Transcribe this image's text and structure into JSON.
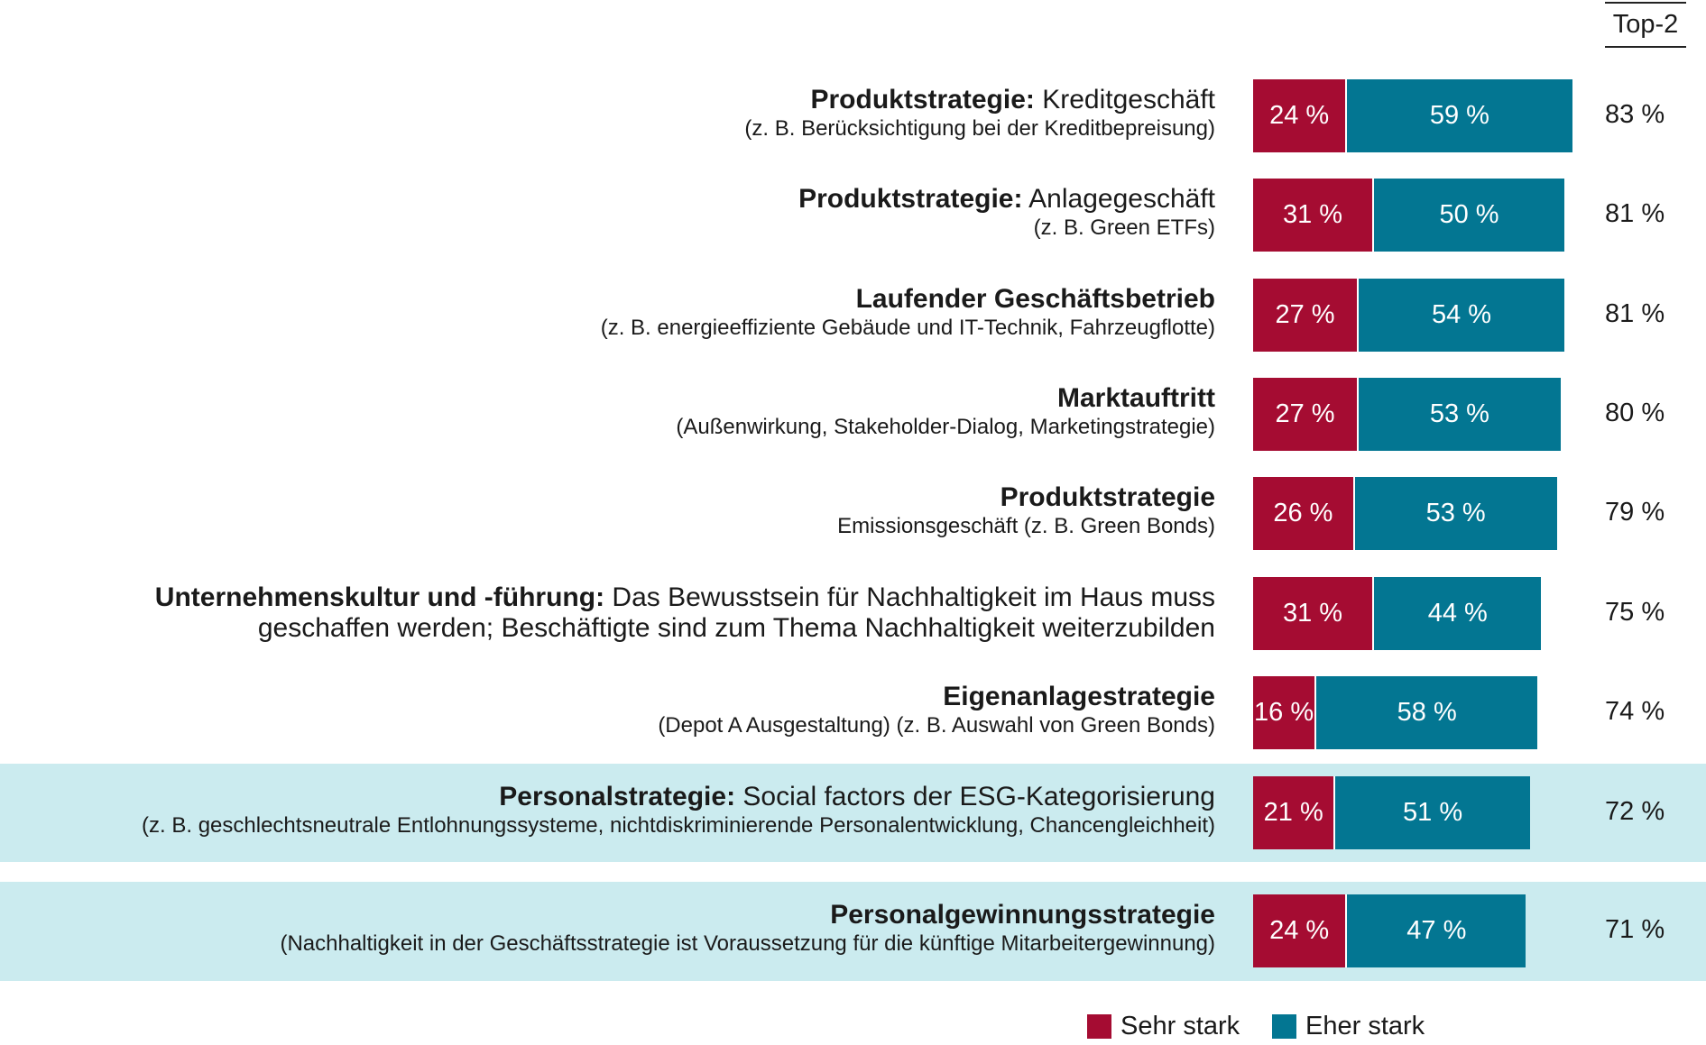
{
  "chart_data": {
    "type": "bar",
    "orientation": "horizontal",
    "stacked": true,
    "header": "Top-2",
    "unit": "%",
    "legend_position": "bottom",
    "series": [
      {
        "name": "Sehr stark",
        "color": "#a50c32",
        "values": [
          24,
          31,
          27,
          27,
          26,
          31,
          16,
          21,
          24
        ]
      },
      {
        "name": "Eher stark",
        "color": "#037692",
        "values": [
          59,
          50,
          54,
          53,
          53,
          44,
          58,
          51,
          47
        ]
      }
    ],
    "top2": [
      83,
      81,
      81,
      80,
      79,
      75,
      74,
      72,
      71
    ],
    "highlight_color": "#cbebef",
    "categories": [
      {
        "bold": "Produktstrategie:",
        "rest": " Kreditgeschäft",
        "sub": "(z. B. Berücksichtigung bei der Kreditbepreisung)",
        "highlight": false
      },
      {
        "bold": "Produktstrategie:",
        "rest": " Anlagegeschäft",
        "sub": "(z. B. Green ETFs)",
        "highlight": false
      },
      {
        "bold": "Laufender Geschäftsbetrieb",
        "rest": "",
        "sub": "(z. B. energieeffiziente Gebäude und IT-Technik, Fahrzeugflotte)",
        "highlight": false
      },
      {
        "bold": "Marktauftritt",
        "rest": "",
        "sub": "(Außenwirkung, Stakeholder-Dialog, Marketingstrategie)",
        "highlight": false
      },
      {
        "bold": "Produktstrategie",
        "rest": "",
        "sub": "Emissionsgeschäft (z. B. Green Bonds)",
        "highlight": false
      },
      {
        "bold": "Unternehmenskultur und -führung:",
        "rest": " Das Bewusstsein für Nachhaltigkeit im Haus muss",
        "sub": "geschaffen werden; Beschäftigte sind zum Thema Nachhaltigkeit weiterzubilden",
        "highlight": false,
        "sub_large": true
      },
      {
        "bold": "Eigenanlagestrategie",
        "rest": "",
        "sub": "(Depot A Ausgestaltung) (z. B. Auswahl von Green Bonds)",
        "highlight": false
      },
      {
        "bold": "Personalstrategie:",
        "rest": " Social factors der ESG-Kategorisierung",
        "sub": "(z. B. geschlechtsneutrale Entlohnungssysteme, nichtdiskriminierende Personalentwicklung, Chancengleichheit)",
        "highlight": true
      },
      {
        "bold": "Personalgewinnungsstrategie",
        "rest": "",
        "sub": "(Nachhaltigkeit in der Geschäftsstrategie ist Voraussetzung für die künftige Mitarbeitergewinnung)",
        "highlight": true
      }
    ]
  }
}
